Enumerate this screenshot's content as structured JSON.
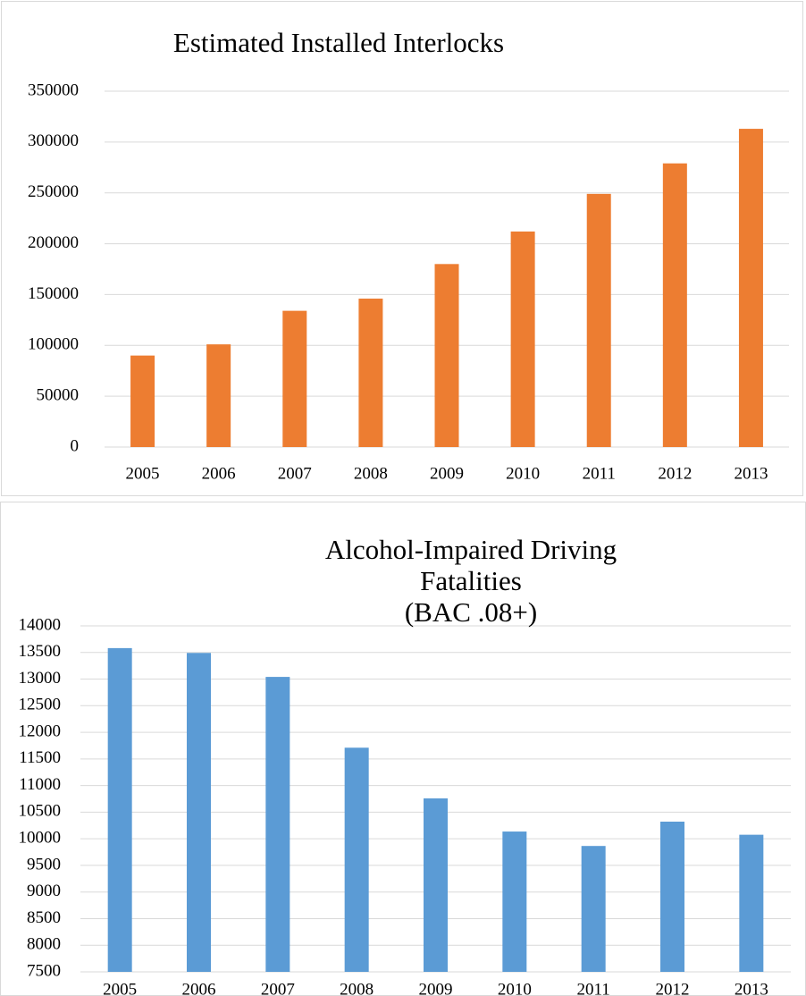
{
  "chart_data": [
    {
      "type": "bar",
      "title": "Estimated Installed Interlocks",
      "categories": [
        "2005",
        "2006",
        "2007",
        "2008",
        "2009",
        "2010",
        "2011",
        "2012",
        "2013"
      ],
      "values": [
        90000,
        101000,
        134000,
        146000,
        180000,
        212000,
        249000,
        279000,
        313000
      ],
      "color": "#ed7d31",
      "ylim": [
        0,
        350000
      ],
      "yticks": [
        0,
        50000,
        100000,
        150000,
        200000,
        250000,
        300000,
        350000
      ],
      "grid": true
    },
    {
      "type": "bar",
      "title": "Alcohol-Impaired Driving Fatalities\n(BAC .08+)",
      "categories": [
        "2005",
        "2006",
        "2007",
        "2008",
        "2009",
        "2010",
        "2011",
        "2012",
        "2013"
      ],
      "values": [
        13582,
        13491,
        13041,
        11711,
        10759,
        10136,
        9865,
        10322,
        10076
      ],
      "color": "#5b9bd5",
      "ylim": [
        7500,
        14000
      ],
      "yticks": [
        7500,
        8000,
        8500,
        9000,
        9500,
        10000,
        10500,
        11000,
        11500,
        12000,
        12500,
        13000,
        13500,
        14000
      ],
      "grid": true
    }
  ]
}
